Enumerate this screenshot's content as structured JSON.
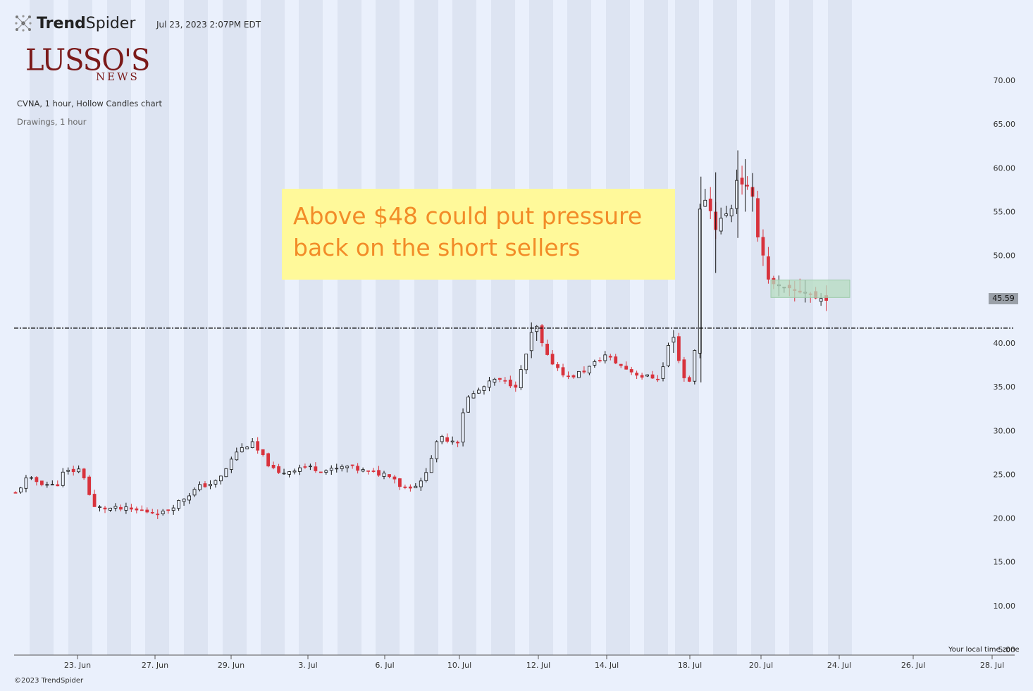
{
  "header": {
    "brand_prefix": "Trend",
    "brand_suffix": "Spider",
    "timestamp": "Jul 23, 2023 2:07PM EDT"
  },
  "logo": {
    "line1": "LUSSO'S",
    "line2": "NEWS"
  },
  "chart_info": {
    "description": "CVNA, 1 hour, Hollow Candles chart",
    "drawings": "Drawings, 1 hour"
  },
  "annotation": {
    "line1": "Above $48 could put pressure",
    "line2": "back on the short sellers"
  },
  "footer": {
    "copyright": "©2023 TrendSpider",
    "timezone": "Your local time zone"
  },
  "colors": {
    "background": "#eaf0fc",
    "session_band": "#dde4f2",
    "up_candle": "#111111",
    "down_candle": "#d8323c",
    "annotation_bg": "#fff99a",
    "annotation_text": "#f28c28",
    "zone_fill": "#b5dcc0"
  },
  "chart_data": {
    "type": "candlestick",
    "symbol": "CVNA",
    "interval": "1 hour",
    "ylim": [
      5,
      70
    ],
    "yticks": [
      "5.00",
      "10.00",
      "15.00",
      "20.00",
      "25.00",
      "30.00",
      "35.00",
      "40.00",
      "45.00",
      "50.00",
      "55.00",
      "60.00",
      "65.00",
      "70.00"
    ],
    "xtick_labels": [
      "23. Jun",
      "27. Jun",
      "29. Jun",
      "3. Jul",
      "6. Jul",
      "10. Jul",
      "12. Jul",
      "14. Jul",
      "18. Jul",
      "20. Jul",
      "24. Jul",
      "26. Jul",
      "28. Jul"
    ],
    "last_price": "45.59",
    "horizontal_line": 41.7,
    "zone": {
      "low": 45.2,
      "high": 47.2
    },
    "close_path": [
      {
        "day": 0,
        "close": 22.8
      },
      {
        "day": 0.3,
        "close": 24.5
      },
      {
        "day": 1.1,
        "close": 23.6
      },
      {
        "day": 1.3,
        "close": 25.2
      },
      {
        "day": 1.8,
        "close": 25.6
      },
      {
        "day": 2.1,
        "close": 21.2
      },
      {
        "day": 3.0,
        "close": 21.0
      },
      {
        "day": 4.0,
        "close": 20.6
      },
      {
        "day": 4.6,
        "close": 22.4
      },
      {
        "day": 5.0,
        "close": 23.6
      },
      {
        "day": 5.5,
        "close": 24.2
      },
      {
        "day": 6.0,
        "close": 27.6
      },
      {
        "day": 6.4,
        "close": 28.6
      },
      {
        "day": 6.8,
        "close": 26.5
      },
      {
        "day": 7.1,
        "close": 25.0
      },
      {
        "day": 7.8,
        "close": 25.9
      },
      {
        "day": 8.5,
        "close": 25.4
      },
      {
        "day": 9.0,
        "close": 25.9
      },
      {
        "day": 9.6,
        "close": 25.2
      },
      {
        "day": 10.2,
        "close": 25.0
      },
      {
        "day": 10.5,
        "close": 23.4
      },
      {
        "day": 11.0,
        "close": 24.0
      },
      {
        "day": 11.5,
        "close": 29.2
      },
      {
        "day": 12.0,
        "close": 28.8
      },
      {
        "day": 12.2,
        "close": 33.5
      },
      {
        "day": 13.0,
        "close": 35.8
      },
      {
        "day": 13.6,
        "close": 35.2
      },
      {
        "day": 14.1,
        "close": 42.0
      },
      {
        "day": 14.4,
        "close": 38.5
      },
      {
        "day": 15.0,
        "close": 36.0
      },
      {
        "day": 15.5,
        "close": 37.0
      },
      {
        "day": 16.0,
        "close": 38.6
      },
      {
        "day": 16.5,
        "close": 37.2
      },
      {
        "day": 17.0,
        "close": 36.2
      },
      {
        "day": 17.5,
        "close": 36.0
      },
      {
        "day": 17.8,
        "close": 41.2
      },
      {
        "day": 18.2,
        "close": 35.2
      },
      {
        "day": 18.4,
        "close": 36.2
      },
      {
        "day": 18.6,
        "close": 58.0
      },
      {
        "day": 19.0,
        "close": 53.5
      },
      {
        "day": 19.4,
        "close": 55.0
      },
      {
        "day": 19.6,
        "close": 59.5
      },
      {
        "day": 19.9,
        "close": 57.0
      },
      {
        "day": 20.0,
        "close": 56.0
      },
      {
        "day": 20.2,
        "close": 51.5
      },
      {
        "day": 20.5,
        "close": 46.5
      },
      {
        "day": 21.0,
        "close": 45.6
      },
      {
        "day": 21.4,
        "close": 46.2
      },
      {
        "day": 21.8,
        "close": 44.8
      },
      {
        "day": 22.0,
        "close": 45.59
      }
    ]
  }
}
